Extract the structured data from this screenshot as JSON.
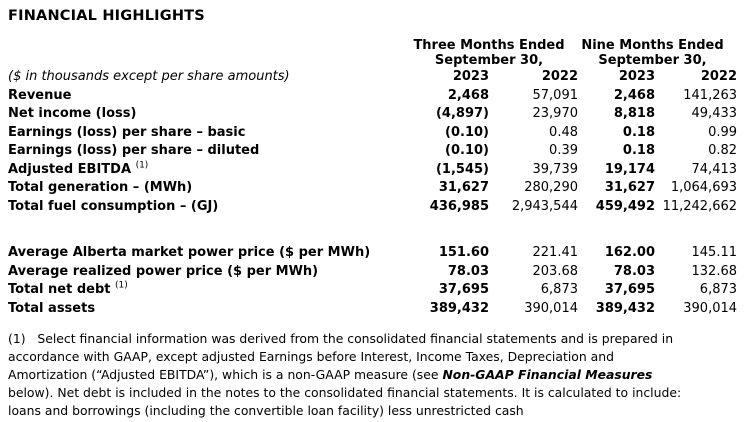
{
  "title": "FINANCIAL HIGHLIGHTS",
  "table": {
    "group_headers": [
      {
        "line1": "Three Months Ended",
        "line2": "September 30,"
      },
      {
        "line1": "Nine Months Ended",
        "line2": "September 30,"
      }
    ],
    "note": "($ in thousands except per share amounts)",
    "year_headers": [
      "2023",
      "2022",
      "2023",
      "2022"
    ],
    "rows": [
      {
        "label": "Revenue",
        "sup": "",
        "gap_before": false,
        "values": [
          "2,468",
          "57,091",
          "2,468",
          "141,263"
        ]
      },
      {
        "label": "Net income (loss)",
        "sup": "",
        "gap_before": false,
        "values": [
          "(4,897)",
          "23,970",
          "8,818",
          "49,433"
        ]
      },
      {
        "label": "Earnings (loss) per share – basic",
        "sup": "",
        "gap_before": false,
        "values": [
          "(0.10)",
          "0.48",
          "0.18",
          "0.99"
        ]
      },
      {
        "label": "Earnings (loss) per share – diluted",
        "sup": "",
        "gap_before": false,
        "values": [
          "(0.10)",
          "0.39",
          "0.18",
          "0.82"
        ]
      },
      {
        "label": "Adjusted EBITDA",
        "sup": "(1)",
        "gap_before": false,
        "values": [
          "(1,545)",
          "39,739",
          "19,174",
          "74,413"
        ]
      },
      {
        "label": "Total generation – (MWh)",
        "sup": "",
        "gap_before": false,
        "values": [
          "31,627",
          "280,290",
          "31,627",
          "1,064,693"
        ]
      },
      {
        "label": "Total fuel consumption – (GJ)",
        "sup": "",
        "gap_before": false,
        "values": [
          "436,985",
          "2,943,544",
          "459,492",
          "11,242,662"
        ]
      },
      {
        "label": "Average Alberta market power price ($ per MWh)",
        "sup": "",
        "gap_before": true,
        "values": [
          "151.60",
          "221.41",
          "162.00",
          "145.11"
        ]
      },
      {
        "label": "Average realized power price ($ per MWh)",
        "sup": "",
        "gap_before": false,
        "values": [
          "78.03",
          "203.68",
          "78.03",
          "132.68"
        ]
      },
      {
        "label": "Total net debt",
        "sup": "(1)",
        "gap_before": false,
        "values": [
          "37,695",
          "6,873",
          "37,695",
          "6,873"
        ]
      },
      {
        "label": "Total assets",
        "sup": "",
        "gap_before": false,
        "values": [
          "389,432",
          "390,014",
          "389,432",
          "390,014"
        ]
      }
    ]
  },
  "footnote": {
    "lines": [
      {
        "segments": [
          {
            "text": "(1)   Select financial information was derived from the consolidated financial statements and is prepared in",
            "style": "normal"
          }
        ]
      },
      {
        "segments": [
          {
            "text": "accordance with GAAP, except adjusted Earnings before Interest, Income Taxes, Depreciation and",
            "style": "normal"
          }
        ]
      },
      {
        "segments": [
          {
            "text": "Amortization (“Adjusted EBITDA”), which is a non-GAAP measure (see ",
            "style": "normal"
          },
          {
            "text": "Non-GAAP Financial Measures",
            "style": "bold-italic"
          }
        ]
      },
      {
        "segments": [
          {
            "text": "below). Net debt is included in the notes to the consolidated financial statements. It is calculated to include:",
            "style": "normal"
          }
        ]
      },
      {
        "segments": [
          {
            "text": "loans and borrowings (including the convertible loan facility) less unrestricted cash",
            "style": "normal"
          }
        ]
      }
    ]
  },
  "colors": {
    "text": "#000000",
    "background": "#ffffff"
  }
}
